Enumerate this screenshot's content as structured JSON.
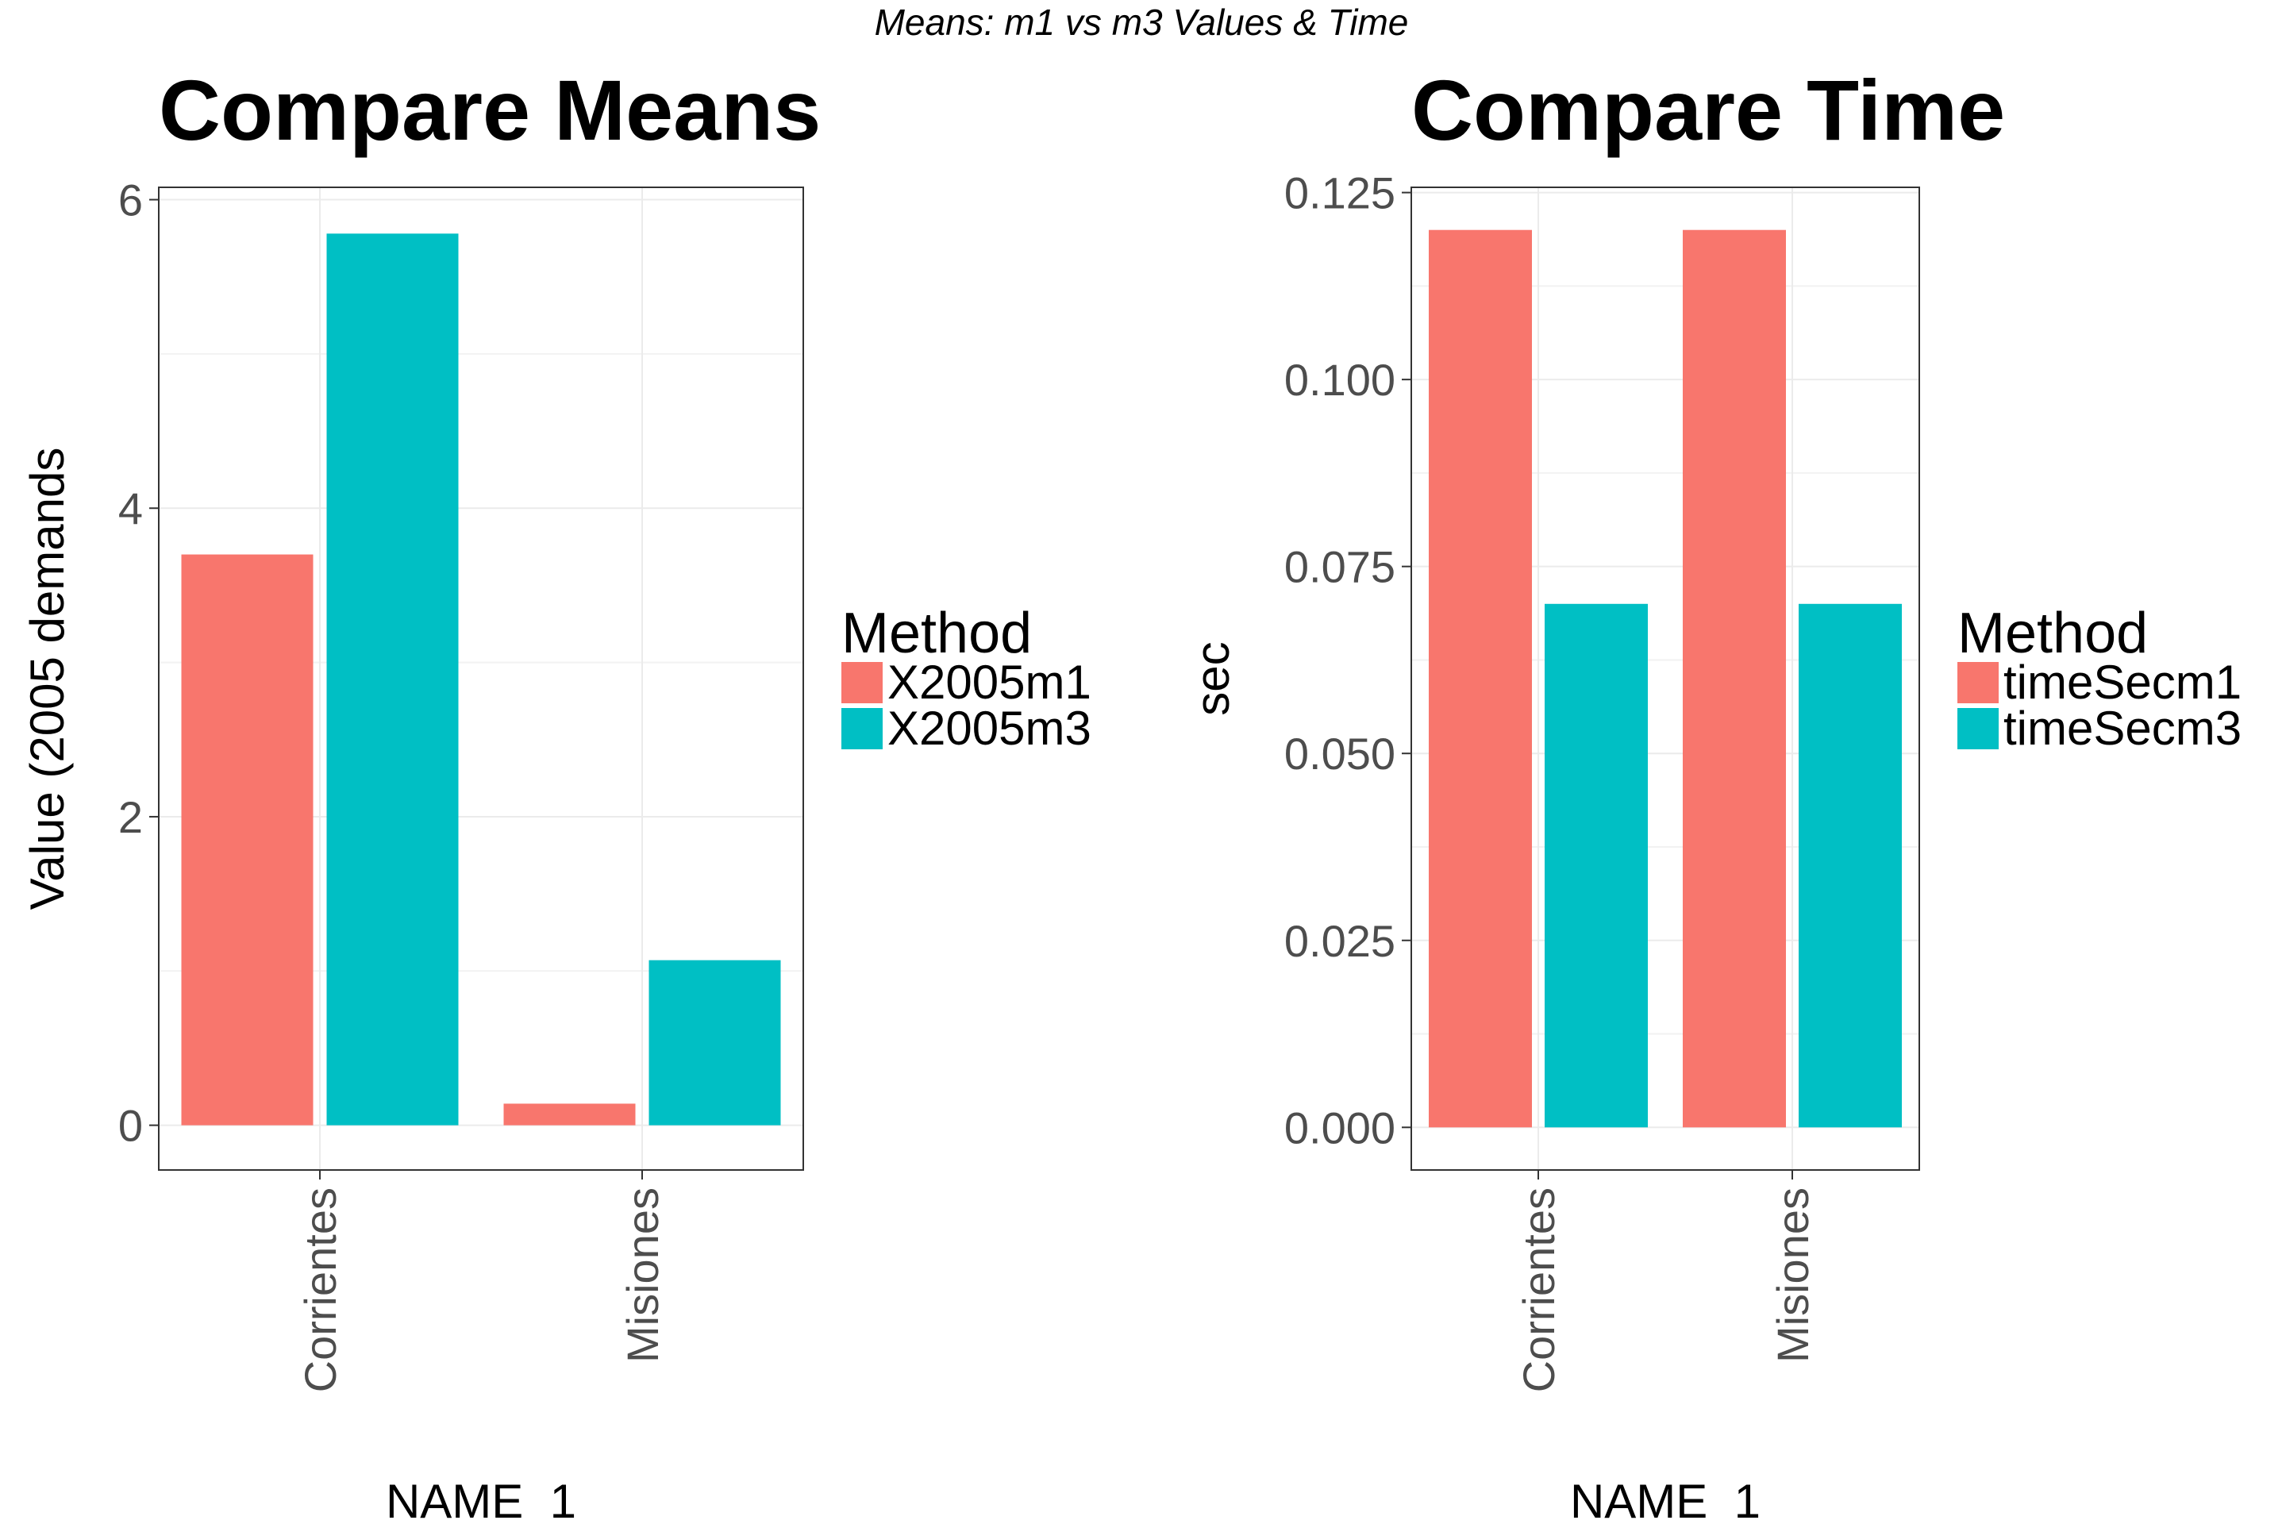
{
  "figure_title": "Means: m1 vs m3 Values & Time",
  "chart_data": [
    {
      "type": "bar",
      "title": "Compare Means",
      "xlabel": "NAME_1",
      "ylabel": "Value (2005 demands",
      "categories": [
        "Corrientes",
        "Misiones"
      ],
      "series": [
        {
          "name": "X2005m1",
          "values": [
            3.7,
            0.14
          ],
          "color": "#F8766D"
        },
        {
          "name": "X2005m3",
          "values": [
            5.78,
            1.07
          ],
          "color": "#00BFC4"
        }
      ],
      "ylim": [
        -0.29,
        6.08
      ],
      "yticks": [
        0,
        2,
        4,
        6
      ],
      "ytick_labels": [
        "0",
        "2",
        "4",
        "6"
      ],
      "legend": {
        "title": "Method",
        "placement": "right"
      },
      "grid": true
    },
    {
      "type": "bar",
      "title": "Compare Time",
      "xlabel": "NAME_1",
      "ylabel": "sec",
      "categories": [
        "Corrientes",
        "Misiones"
      ],
      "series": [
        {
          "name": "timeSecm1",
          "values": [
            0.12,
            0.12
          ],
          "color": "#F8766D"
        },
        {
          "name": "timeSecm3",
          "values": [
            0.07,
            0.07
          ],
          "color": "#00BFC4"
        }
      ],
      "ylim": [
        -0.0057,
        0.1257
      ],
      "yticks": [
        0,
        0.025,
        0.05,
        0.075,
        0.1,
        0.125
      ],
      "ytick_labels": [
        "0.000",
        "0.025",
        "0.050",
        "0.075",
        "0.100",
        "0.125"
      ],
      "legend": {
        "title": "Method",
        "placement": "right"
      },
      "grid": true
    }
  ]
}
